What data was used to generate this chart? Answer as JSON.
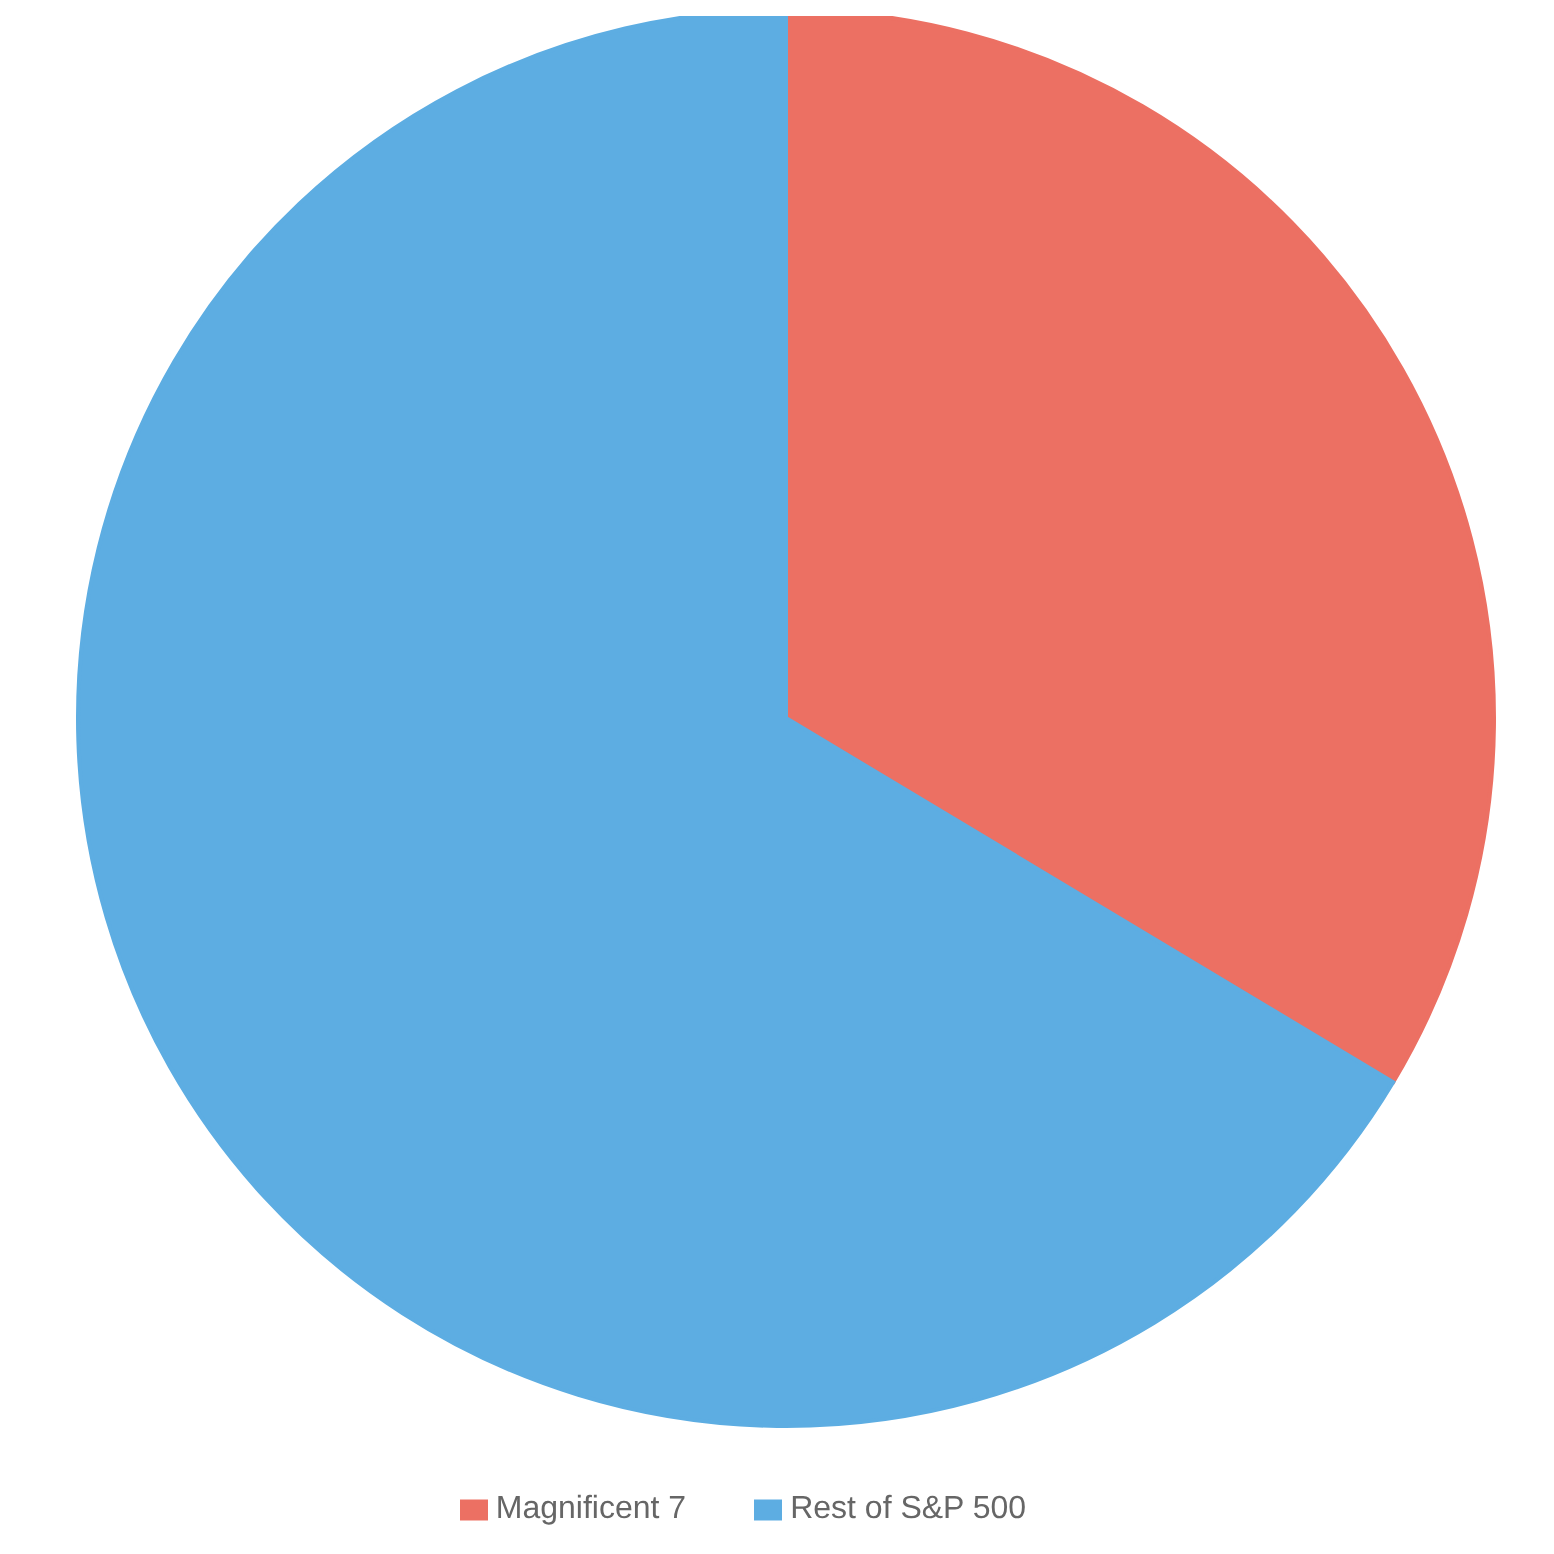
{
  "chart_data": {
    "type": "pie",
    "categories": [
      "Magnificent 7",
      "Rest of S&P 500"
    ],
    "values": [
      33.6,
      66.4
    ],
    "colors": [
      "#ec7063",
      "#5dade2"
    ],
    "legend": "bottom"
  }
}
